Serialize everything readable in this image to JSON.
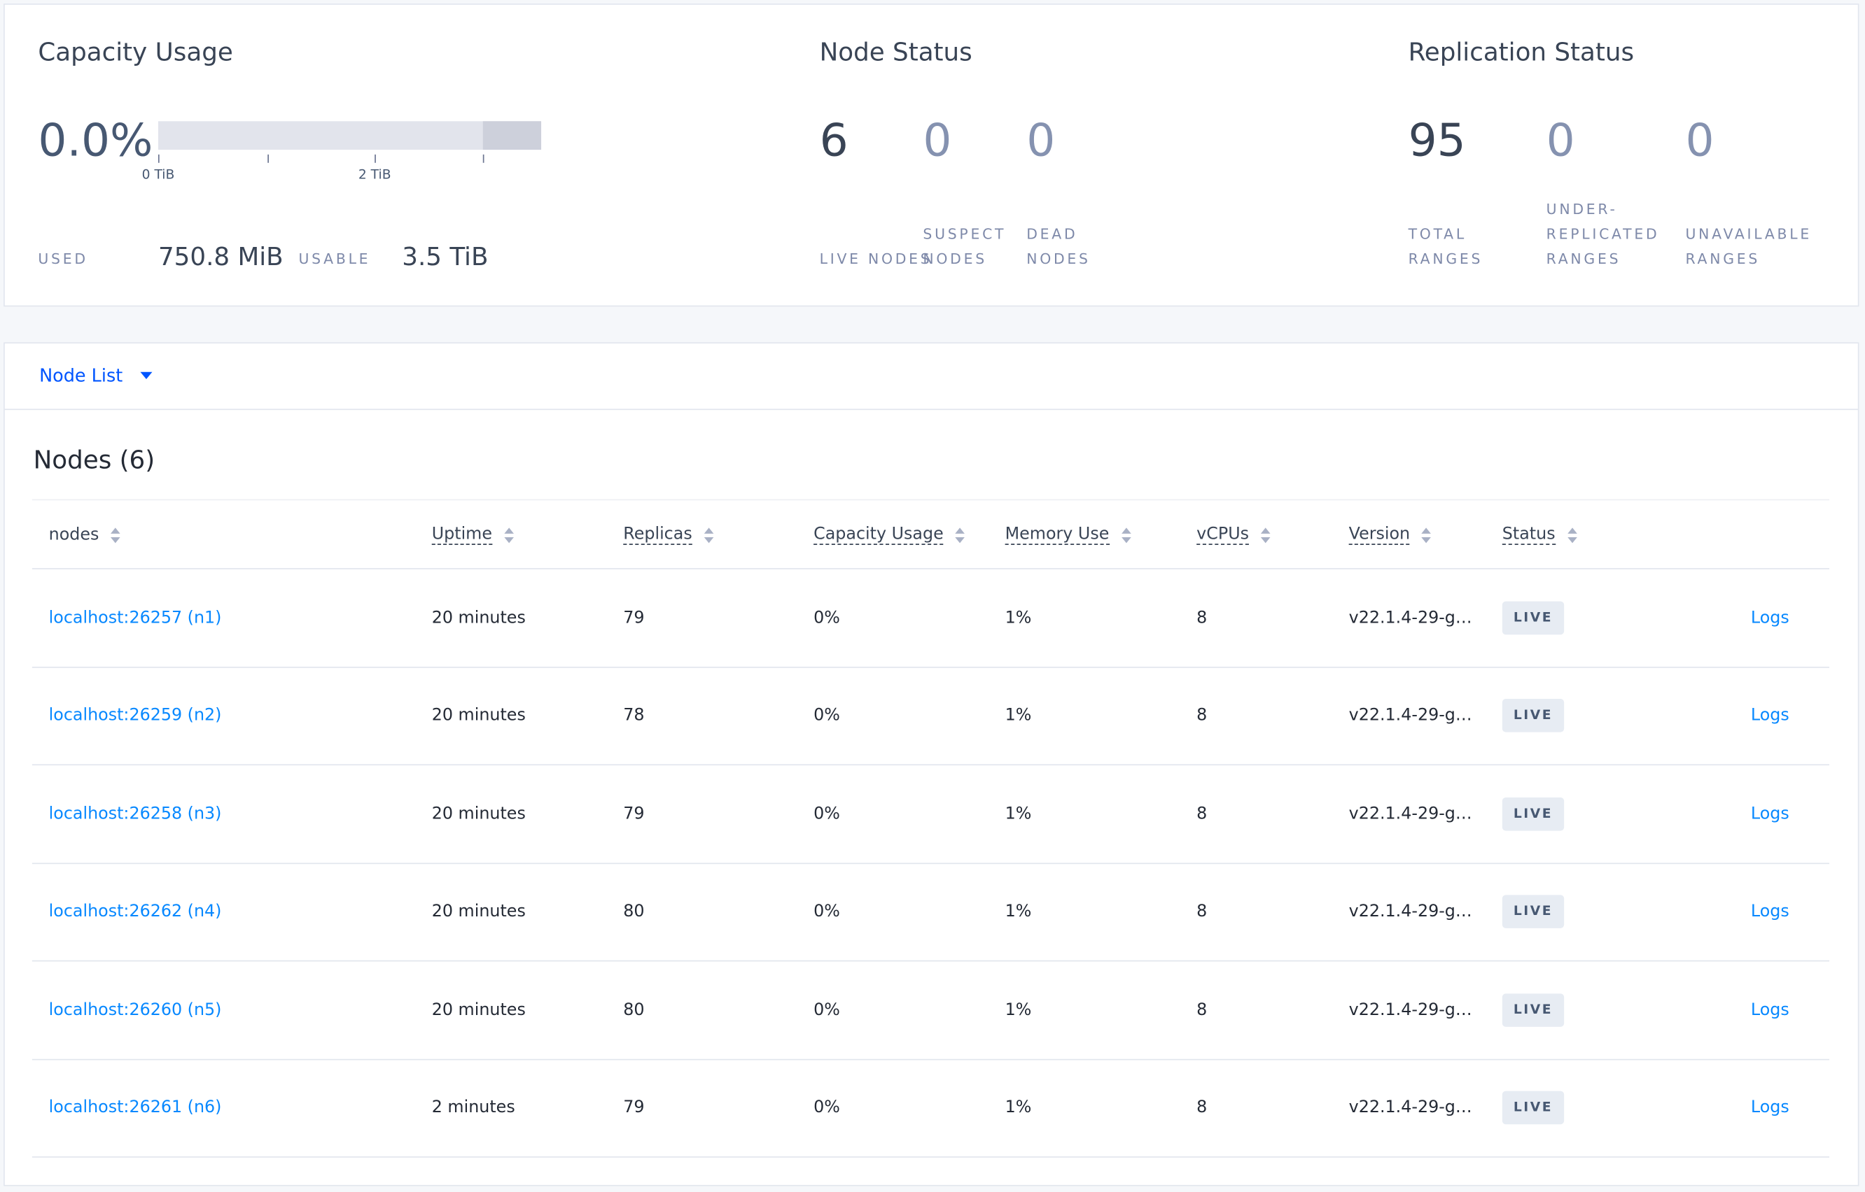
{
  "summary": {
    "capacity": {
      "title": "Capacity Usage",
      "percent": "0.0%",
      "ticks": [
        "0 TiB",
        "2 TiB"
      ],
      "used_label": "USED",
      "used": "750.8 MiB",
      "usable_label": "USABLE",
      "usable": "3.5 TiB"
    },
    "node_status": {
      "title": "Node Status",
      "items": [
        {
          "value": 6,
          "label": "LIVE NODES"
        },
        {
          "value": 0,
          "label": "SUSPECT NODES"
        },
        {
          "value": 0,
          "label": "DEAD NODES"
        }
      ]
    },
    "replication_status": {
      "title": "Replication Status",
      "items": [
        {
          "value": 95,
          "label": "TOTAL RANGES"
        },
        {
          "value": 0,
          "label": "UNDER-REPLICATED RANGES"
        },
        {
          "value": 0,
          "label": "UNAVAILABLE RANGES"
        }
      ]
    }
  },
  "node_list": {
    "selector": "Node List",
    "heading": "Nodes (6)",
    "columns": [
      "nodes",
      "Uptime",
      "Replicas",
      "Capacity Usage",
      "Memory Use",
      "vCPUs",
      "Version",
      "Status"
    ],
    "rows": [
      [
        "localhost:26257 (n1)",
        "20 minutes",
        79,
        "0%",
        "1%",
        8,
        "v22.1.4-29-g…",
        "LIVE",
        "Logs"
      ],
      [
        "localhost:26259 (n2)",
        "20 minutes",
        78,
        "0%",
        "1%",
        8,
        "v22.1.4-29-g…",
        "LIVE",
        "Logs"
      ],
      [
        "localhost:26258 (n3)",
        "20 minutes",
        79,
        "0%",
        "1%",
        8,
        "v22.1.4-29-g…",
        "LIVE",
        "Logs"
      ],
      [
        "localhost:26262 (n4)",
        "20 minutes",
        80,
        "0%",
        "1%",
        8,
        "v22.1.4-29-g…",
        "LIVE",
        "Logs"
      ],
      [
        "localhost:26260 (n5)",
        "20 minutes",
        80,
        "0%",
        "1%",
        8,
        "v22.1.4-29-g…",
        "LIVE",
        "Logs"
      ],
      [
        "localhost:26261 (n6)",
        "2 minutes",
        79,
        "0%",
        "1%",
        8,
        "v22.1.4-29-g…",
        "LIVE",
        "Logs"
      ]
    ]
  }
}
